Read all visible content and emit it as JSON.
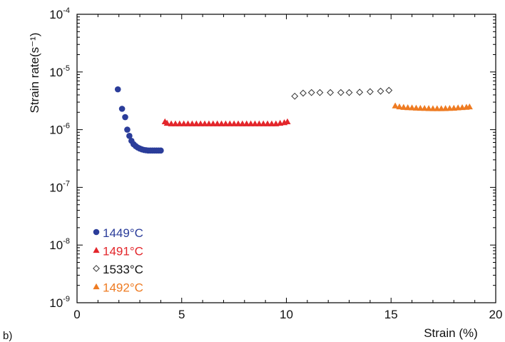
{
  "panel_label": "b)",
  "chart_data": {
    "type": "scatter",
    "title": "",
    "xlabel": "Strain (%)",
    "ylabel": "Strain rate(s⁻¹)",
    "xlim": [
      0,
      20
    ],
    "ylim": [
      1e-09,
      0.0001
    ],
    "yscale": "log",
    "grid": false,
    "x_ticks": [
      "0",
      "5",
      "10",
      "15",
      "20"
    ],
    "y_tick_exponents": [
      -9,
      -8,
      -7,
      -6,
      -5,
      -4
    ],
    "legend_position": "bottom-left",
    "series": [
      {
        "name": "1449°C",
        "marker": "circle",
        "color": "#2b3d9a",
        "x": [
          1.95,
          2.15,
          2.3,
          2.4,
          2.5,
          2.6,
          2.7,
          2.8,
          2.9,
          3.0,
          3.1,
          3.2,
          3.3,
          3.4,
          3.5,
          3.6,
          3.7,
          3.8,
          3.9,
          4.0
        ],
        "y": [
          5e-06,
          2.3e-06,
          1.65e-06,
          1e-06,
          7.8e-07,
          6.4e-07,
          5.6e-07,
          5.2e-07,
          4.9e-07,
          4.7e-07,
          4.55e-07,
          4.45e-07,
          4.4e-07,
          4.35e-07,
          4.35e-07,
          4.35e-07,
          4.35e-07,
          4.35e-07,
          4.35e-07,
          4.35e-07
        ]
      },
      {
        "name": "1491°C",
        "marker": "triangle",
        "color": "#e3262b",
        "x": [
          4.2,
          4.3,
          4.5,
          4.7,
          4.9,
          5.1,
          5.3,
          5.5,
          5.7,
          5.9,
          6.1,
          6.3,
          6.5,
          6.7,
          6.9,
          7.1,
          7.3,
          7.5,
          7.7,
          7.9,
          8.1,
          8.3,
          8.5,
          8.7,
          8.9,
          9.1,
          9.3,
          9.5,
          9.7,
          9.9,
          10.05
        ],
        "y": [
          1.38e-06,
          1.3e-06,
          1.27e-06,
          1.27e-06,
          1.27e-06,
          1.27e-06,
          1.27e-06,
          1.27e-06,
          1.27e-06,
          1.27e-06,
          1.27e-06,
          1.27e-06,
          1.27e-06,
          1.27e-06,
          1.27e-06,
          1.27e-06,
          1.27e-06,
          1.27e-06,
          1.27e-06,
          1.27e-06,
          1.27e-06,
          1.27e-06,
          1.27e-06,
          1.27e-06,
          1.27e-06,
          1.27e-06,
          1.27e-06,
          1.27e-06,
          1.3e-06,
          1.33e-06,
          1.38e-06
        ]
      },
      {
        "name": "1533°C",
        "marker": "diamond",
        "color": "#333333",
        "x": [
          10.4,
          10.8,
          11.2,
          11.6,
          12.1,
          12.6,
          13.0,
          13.5,
          14.0,
          14.5,
          14.9
        ],
        "y": [
          3.8e-06,
          4.3e-06,
          4.4e-06,
          4.4e-06,
          4.4e-06,
          4.4e-06,
          4.4e-06,
          4.45e-06,
          4.55e-06,
          4.65e-06,
          4.8e-06
        ]
      },
      {
        "name": "1492°C",
        "marker": "triangle",
        "color": "#ee7b22",
        "x": [
          15.2,
          15.4,
          15.6,
          15.8,
          16.0,
          16.2,
          16.4,
          16.6,
          16.8,
          17.0,
          17.2,
          17.4,
          17.6,
          17.8,
          18.0,
          18.2,
          18.4,
          18.6,
          18.75
        ],
        "y": [
          2.6e-06,
          2.5e-06,
          2.45e-06,
          2.42e-06,
          2.4e-06,
          2.38e-06,
          2.36e-06,
          2.35e-06,
          2.34e-06,
          2.33e-06,
          2.33e-06,
          2.33e-06,
          2.34e-06,
          2.35e-06,
          2.37e-06,
          2.4e-06,
          2.43e-06,
          2.46e-06,
          2.5e-06
        ]
      }
    ]
  }
}
